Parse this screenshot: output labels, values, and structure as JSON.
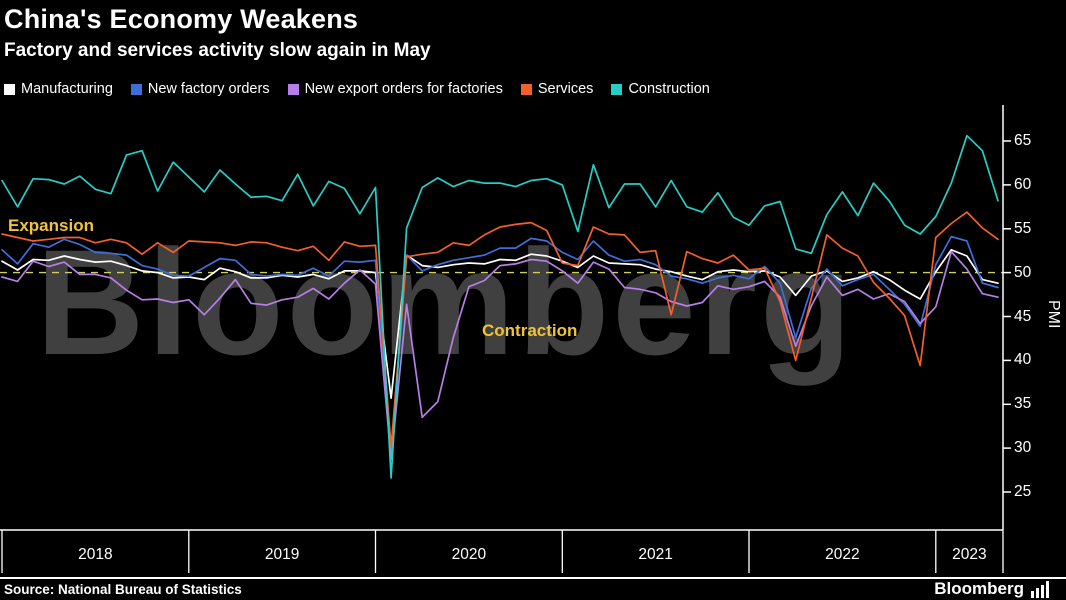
{
  "title": "China's Economy Weakens",
  "subtitle": "Factory and services activity slow again in May",
  "watermark": "Bloomberg",
  "annotations": {
    "expansion": "Expansion",
    "contraction": "Contraction"
  },
  "axis": {
    "y_label": "PMI",
    "y_ticks": [
      65,
      60,
      55,
      50,
      45,
      40,
      35,
      30,
      25
    ],
    "x_ticks": [
      "2018",
      "2019",
      "2020",
      "2021",
      "2022",
      "2023"
    ]
  },
  "colors": {
    "background": "#000000",
    "baseline": "#cfcf5a",
    "annotation_yellow": "#efc437",
    "axis": "#ffffff"
  },
  "footer": {
    "source": "Source: National Bureau of Statistics",
    "brand": "Bloomberg"
  },
  "chart_data": {
    "type": "line",
    "title": "China's Economy Weakens",
    "subtitle": "Factory and services activity slow again in May",
    "xlabel": "",
    "ylabel": "PMI",
    "ylim": [
      25,
      65
    ],
    "x_start": "2018-01",
    "x_end": "2023-05",
    "frequency": "monthly",
    "baseline_value": 50,
    "baseline_label_above": "Expansion",
    "baseline_label_below": "Contraction",
    "legend_position": "top",
    "grid": false,
    "series": [
      {
        "name": "Manufacturing",
        "color": "#ffffff",
        "values": [
          51.3,
          50.3,
          51.5,
          51.4,
          51.9,
          51.5,
          51.2,
          51.3,
          50.8,
          50.2,
          50.0,
          49.4,
          49.5,
          49.2,
          50.5,
          50.1,
          49.4,
          49.4,
          49.7,
          49.5,
          49.8,
          49.3,
          50.2,
          50.2,
          50.0,
          35.7,
          52.0,
          50.8,
          50.6,
          50.9,
          51.1,
          51.0,
          51.5,
          51.4,
          52.1,
          51.9,
          51.3,
          50.6,
          51.9,
          51.1,
          51.0,
          50.9,
          50.4,
          50.1,
          49.6,
          49.2,
          50.1,
          50.3,
          50.1,
          50.2,
          49.5,
          47.4,
          49.6,
          50.2,
          49.0,
          49.4,
          50.1,
          49.2,
          48.0,
          47.0,
          50.1,
          52.6,
          51.9,
          49.2,
          48.8
        ]
      },
      {
        "name": "New factory orders",
        "color": "#3e6fd9",
        "values": [
          52.6,
          51.0,
          53.3,
          52.9,
          53.8,
          53.2,
          52.3,
          52.2,
          52.0,
          50.8,
          50.4,
          49.7,
          49.6,
          50.6,
          51.6,
          51.4,
          49.8,
          49.6,
          49.8,
          49.7,
          50.5,
          49.6,
          51.3,
          51.2,
          51.4,
          29.3,
          52.0,
          50.2,
          50.9,
          51.4,
          51.7,
          52.0,
          52.8,
          52.8,
          53.9,
          53.6,
          52.3,
          51.5,
          53.6,
          52.0,
          51.3,
          51.5,
          50.9,
          49.6,
          49.3,
          48.8,
          49.4,
          49.7,
          49.3,
          50.7,
          48.8,
          42.6,
          48.2,
          50.4,
          48.5,
          49.2,
          49.8,
          48.1,
          46.4,
          43.9,
          50.9,
          54.1,
          53.6,
          48.8,
          48.3
        ]
      },
      {
        "name": "New export orders for factories",
        "color": "#b67ee6",
        "values": [
          49.5,
          49.0,
          51.3,
          50.7,
          51.2,
          49.8,
          49.8,
          49.4,
          48.0,
          46.9,
          47.0,
          46.6,
          46.9,
          45.2,
          47.1,
          49.2,
          46.5,
          46.3,
          46.9,
          47.2,
          48.2,
          47.0,
          48.8,
          50.3,
          48.7,
          28.7,
          46.4,
          33.5,
          35.3,
          42.6,
          48.4,
          49.1,
          50.8,
          51.0,
          51.5,
          51.3,
          50.2,
          48.8,
          51.2,
          50.4,
          48.3,
          48.1,
          47.7,
          46.7,
          46.2,
          46.6,
          48.5,
          48.1,
          48.4,
          49.0,
          47.2,
          41.6,
          46.2,
          49.5,
          47.4,
          48.1,
          47.0,
          47.6,
          46.7,
          44.2,
          46.1,
          52.4,
          50.4,
          47.6,
          47.2
        ]
      },
      {
        "name": "Services",
        "color": "#f2602b",
        "values": [
          54.4,
          54.0,
          53.6,
          53.8,
          54.0,
          54.0,
          53.4,
          53.8,
          53.4,
          52.1,
          53.4,
          52.3,
          53.6,
          53.5,
          53.4,
          53.1,
          53.5,
          53.4,
          52.9,
          52.5,
          53.0,
          51.4,
          53.5,
          53.0,
          53.1,
          30.1,
          51.8,
          52.1,
          52.3,
          53.4,
          53.1,
          54.3,
          55.2,
          55.5,
          55.7,
          54.8,
          51.1,
          50.8,
          55.2,
          54.4,
          54.3,
          52.3,
          52.5,
          45.2,
          52.4,
          51.6,
          51.1,
          52.0,
          50.3,
          50.5,
          46.7,
          40.0,
          47.1,
          54.3,
          52.8,
          51.9,
          48.9,
          47.1,
          45.1,
          39.4,
          54.0,
          55.6,
          56.9,
          55.1,
          53.8
        ]
      },
      {
        "name": "Construction",
        "color": "#27cec5",
        "values": [
          60.5,
          57.5,
          60.7,
          60.6,
          60.1,
          61.0,
          59.5,
          59.0,
          63.4,
          63.9,
          59.3,
          62.6,
          60.9,
          59.2,
          61.7,
          60.1,
          58.6,
          58.7,
          58.2,
          61.2,
          57.6,
          60.4,
          59.6,
          56.7,
          59.7,
          26.6,
          55.1,
          59.7,
          60.8,
          59.8,
          60.5,
          60.2,
          60.2,
          59.8,
          60.5,
          60.7,
          60.0,
          54.7,
          62.3,
          57.4,
          60.1,
          60.1,
          57.5,
          60.5,
          57.5,
          56.9,
          59.1,
          56.3,
          55.4,
          57.6,
          58.1,
          52.7,
          52.2,
          56.6,
          59.2,
          56.5,
          60.2,
          58.2,
          55.4,
          54.4,
          56.4,
          60.2,
          65.6,
          63.9,
          58.2
        ]
      }
    ]
  }
}
